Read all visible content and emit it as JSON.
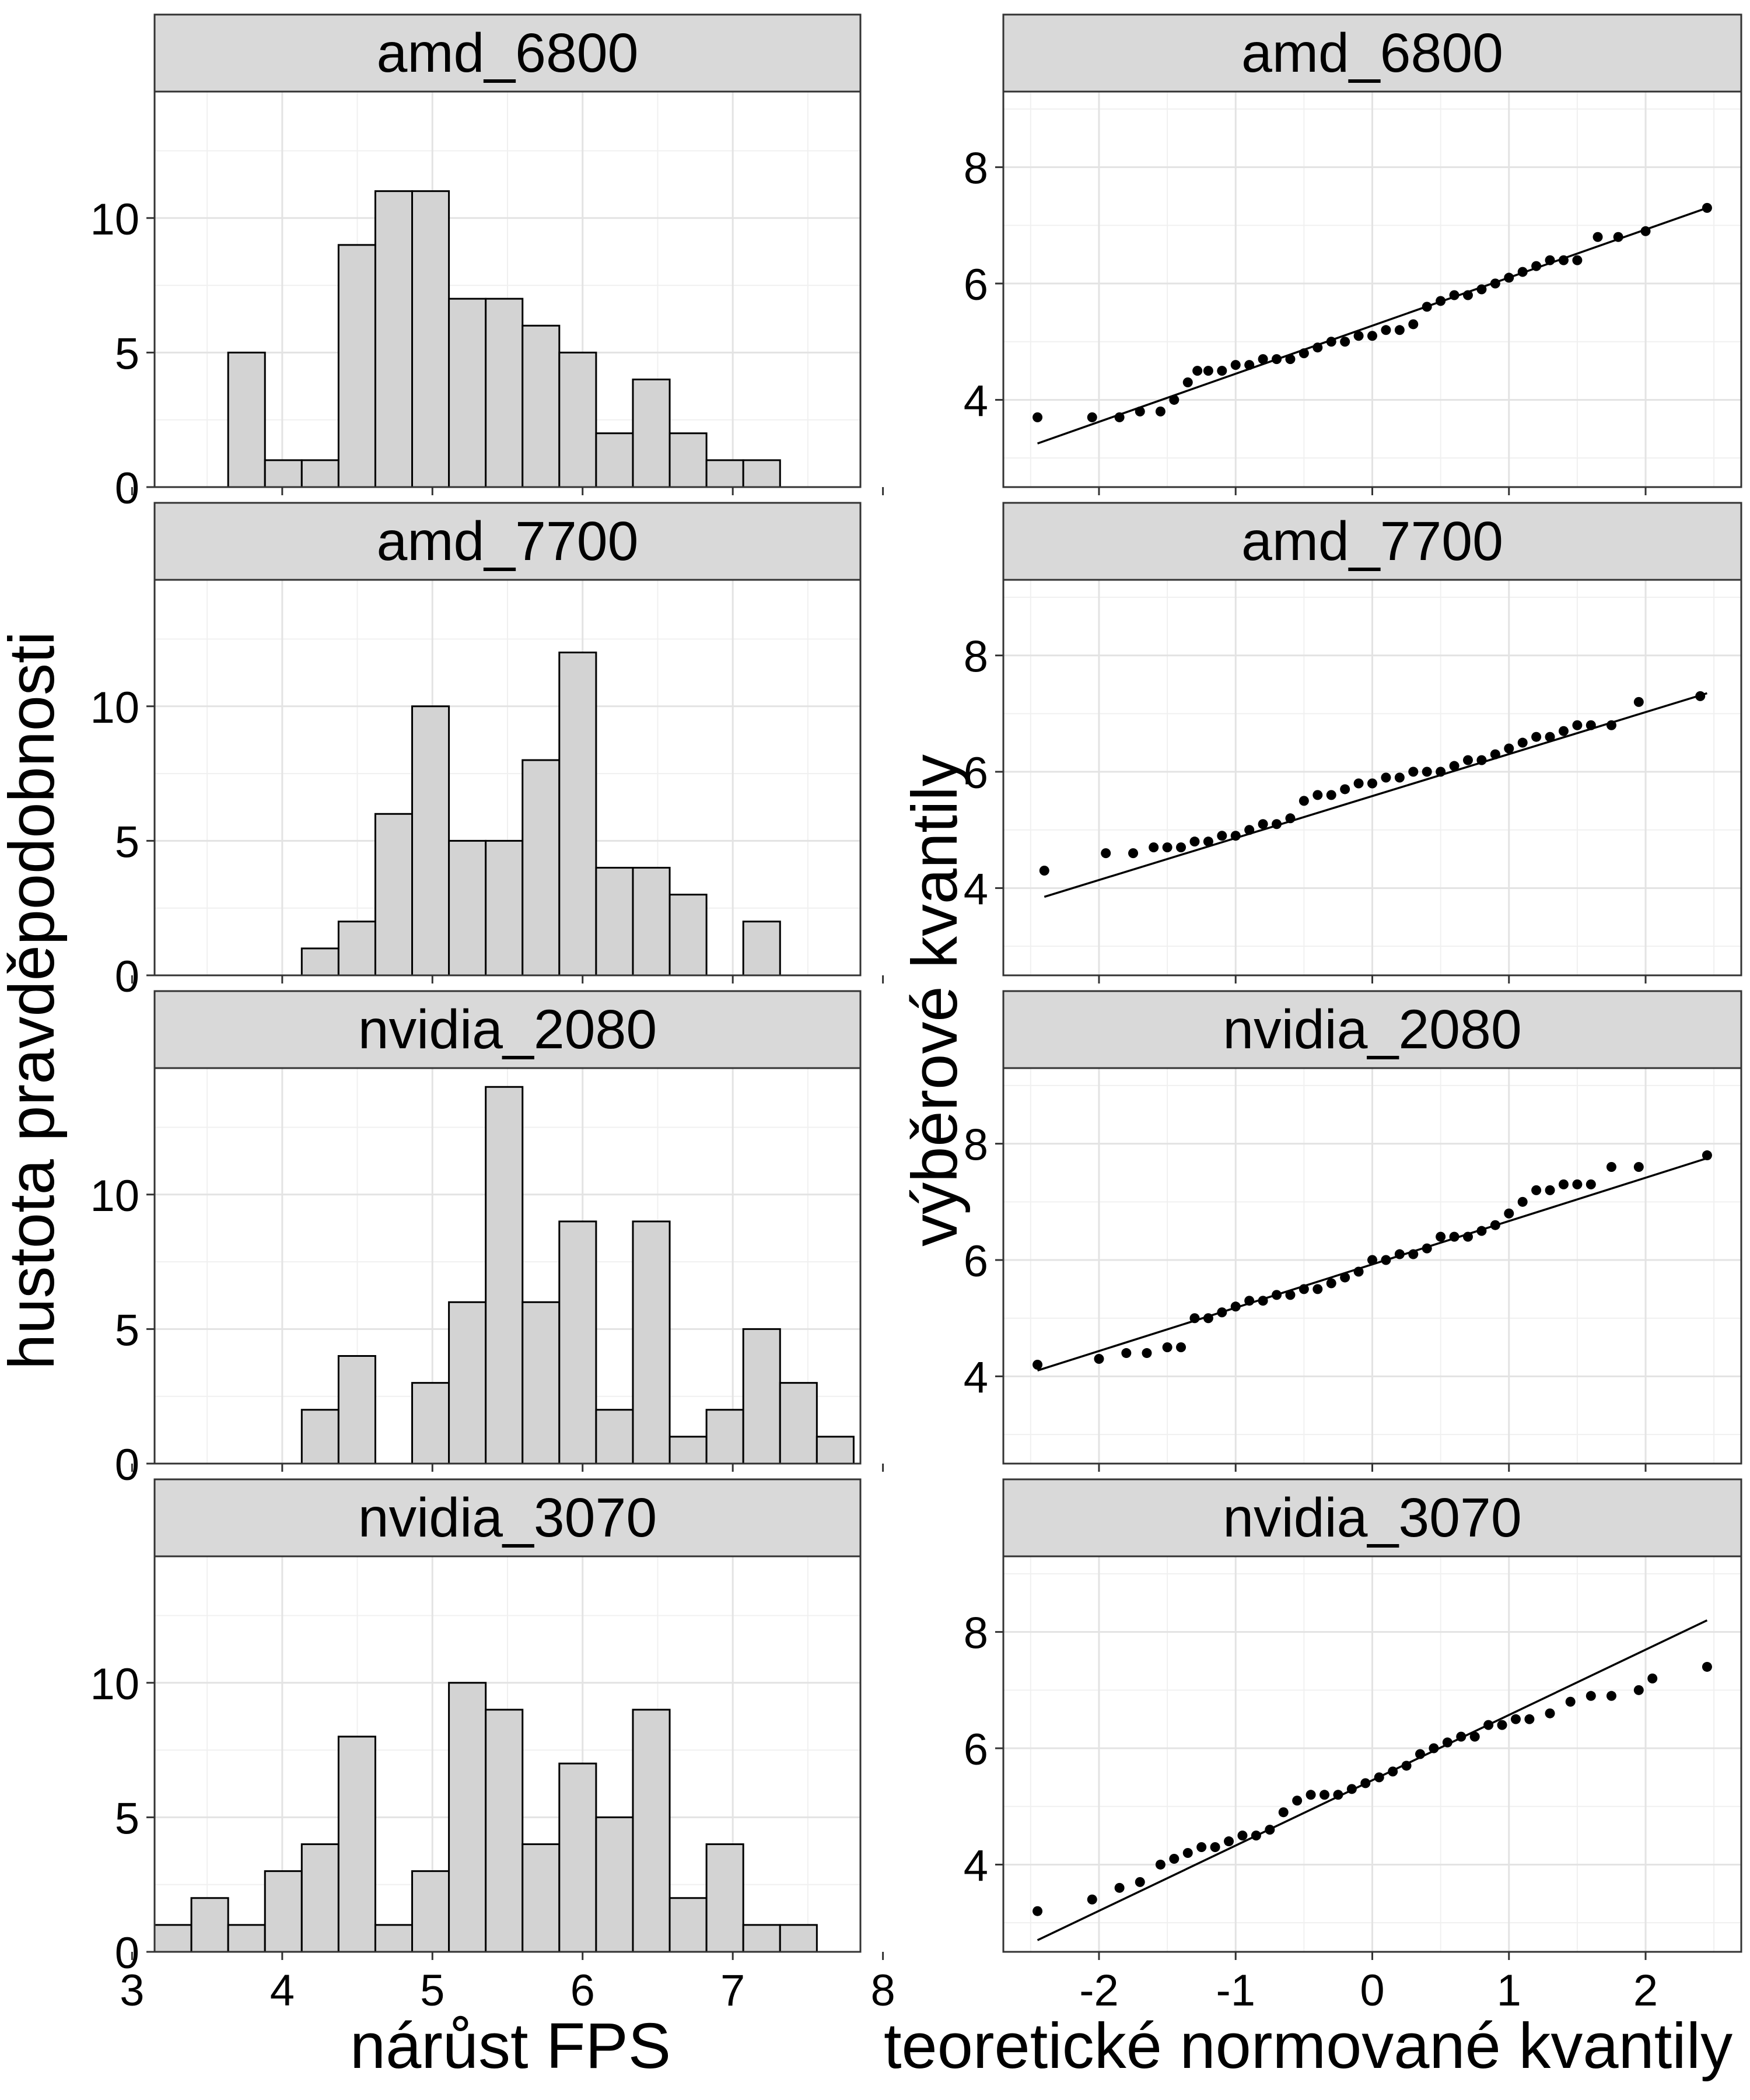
{
  "chart_data": [
    {
      "type": "bar",
      "layout": "facet_wrap",
      "facets": [
        "amd_6800",
        "amd_7700",
        "nvidia_2080",
        "nvidia_3070"
      ],
      "ylabel": "hustota pravděpodobnosti",
      "xlabel": "nárůst FPS",
      "xlim": [
        3.15,
        7.85
      ],
      "ylim": [
        0,
        14.7
      ],
      "xticks": [
        "3",
        "4",
        "5",
        "6",
        "7",
        "8"
      ],
      "xtick_values": [
        3,
        4,
        5,
        6,
        7,
        8
      ],
      "yticks": [
        "0",
        "5",
        "10"
      ],
      "ytick_values": [
        0,
        5,
        10
      ],
      "bin_start": 3.15,
      "bin_width": 0.245,
      "grid": true,
      "series": [
        {
          "facet": "amd_6800",
          "values": [
            0,
            0,
            5,
            1,
            1,
            9,
            11,
            11,
            7,
            7,
            6,
            5,
            2,
            4,
            2,
            1,
            1,
            0,
            0
          ]
        },
        {
          "facet": "amd_7700",
          "values": [
            0,
            0,
            0,
            0,
            1,
            2,
            6,
            10,
            5,
            5,
            8,
            12,
            4,
            4,
            3,
            0,
            2,
            0,
            0
          ]
        },
        {
          "facet": "nvidia_2080",
          "values": [
            0,
            0,
            0,
            0,
            2,
            4,
            0,
            3,
            6,
            14,
            6,
            9,
            2,
            9,
            1,
            2,
            5,
            3,
            1
          ]
        },
        {
          "facet": "nvidia_3070",
          "values": [
            1,
            2,
            1,
            3,
            4,
            8,
            1,
            3,
            10,
            9,
            4,
            7,
            5,
            9,
            2,
            4,
            1,
            1,
            0
          ]
        }
      ]
    },
    {
      "type": "scatter",
      "subtype": "qq",
      "layout": "facet_wrap",
      "facets": [
        "amd_6800",
        "amd_7700",
        "nvidia_2080",
        "nvidia_3070"
      ],
      "ylabel": "výběrové kvantily",
      "xlabel": "teoretické normované kvantily",
      "xlim": [
        -2.7,
        2.7
      ],
      "ylim": [
        2.5,
        9.3
      ],
      "xticks": [
        "-2",
        "-1",
        "0",
        "1",
        "2"
      ],
      "xtick_values": [
        -2,
        -1,
        0,
        1,
        2
      ],
      "yticks": [
        "4",
        "6",
        "8"
      ],
      "ytick_values": [
        4,
        6,
        8
      ],
      "grid": true,
      "series": [
        {
          "facet": "amd_6800",
          "line": {
            "x": [
              -2.45,
              2.45
            ],
            "y": [
              3.25,
              7.3
            ]
          },
          "x": [
            -2.45,
            -2.05,
            -1.85,
            -1.7,
            -1.55,
            -1.45,
            -1.35,
            -1.28,
            -1.2,
            -1.1,
            -1.0,
            -0.9,
            -0.8,
            -0.7,
            -0.6,
            -0.5,
            -0.4,
            -0.3,
            -0.2,
            -0.1,
            0.0,
            0.1,
            0.2,
            0.3,
            0.4,
            0.5,
            0.6,
            0.7,
            0.8,
            0.9,
            1.0,
            1.1,
            1.2,
            1.3,
            1.4,
            1.5,
            1.65,
            1.8,
            2.0,
            2.45
          ],
          "y": [
            3.7,
            3.7,
            3.7,
            3.8,
            3.8,
            4.0,
            4.3,
            4.5,
            4.5,
            4.5,
            4.6,
            4.6,
            4.7,
            4.7,
            4.7,
            4.8,
            4.9,
            5.0,
            5.0,
            5.1,
            5.1,
            5.2,
            5.2,
            5.3,
            5.6,
            5.7,
            5.8,
            5.8,
            5.9,
            6.0,
            6.1,
            6.2,
            6.3,
            6.4,
            6.4,
            6.4,
            6.8,
            6.8,
            6.9,
            7.3
          ]
        },
        {
          "facet": "amd_7700",
          "line": {
            "x": [
              -2.4,
              2.45
            ],
            "y": [
              3.85,
              7.35
            ]
          },
          "x": [
            -2.4,
            -1.95,
            -1.75,
            -1.6,
            -1.5,
            -1.4,
            -1.3,
            -1.2,
            -1.1,
            -1.0,
            -0.9,
            -0.8,
            -0.7,
            -0.6,
            -0.5,
            -0.4,
            -0.3,
            -0.2,
            -0.1,
            0.0,
            0.1,
            0.2,
            0.3,
            0.4,
            0.5,
            0.6,
            0.7,
            0.8,
            0.9,
            1.0,
            1.1,
            1.2,
            1.3,
            1.4,
            1.5,
            1.6,
            1.75,
            1.95,
            2.4
          ],
          "y": [
            4.3,
            4.6,
            4.6,
            4.7,
            4.7,
            4.7,
            4.8,
            4.8,
            4.9,
            4.9,
            5.0,
            5.1,
            5.1,
            5.2,
            5.5,
            5.6,
            5.6,
            5.7,
            5.8,
            5.8,
            5.9,
            5.9,
            6.0,
            6.0,
            6.0,
            6.1,
            6.2,
            6.2,
            6.3,
            6.4,
            6.5,
            6.6,
            6.6,
            6.7,
            6.8,
            6.8,
            6.8,
            7.2,
            7.3
          ]
        },
        {
          "facet": "nvidia_2080",
          "line": {
            "x": [
              -2.45,
              2.45
            ],
            "y": [
              4.1,
              7.75
            ]
          },
          "x": [
            -2.45,
            -2.0,
            -1.8,
            -1.65,
            -1.5,
            -1.4,
            -1.3,
            -1.2,
            -1.1,
            -1.0,
            -0.9,
            -0.8,
            -0.7,
            -0.6,
            -0.5,
            -0.4,
            -0.3,
            -0.2,
            -0.1,
            0.0,
            0.1,
            0.2,
            0.3,
            0.4,
            0.5,
            0.6,
            0.7,
            0.8,
            0.9,
            1.0,
            1.1,
            1.2,
            1.3,
            1.4,
            1.5,
            1.6,
            1.75,
            1.95,
            2.45
          ],
          "y": [
            4.2,
            4.3,
            4.4,
            4.4,
            4.5,
            4.5,
            5.0,
            5.0,
            5.1,
            5.2,
            5.3,
            5.3,
            5.4,
            5.4,
            5.5,
            5.5,
            5.6,
            5.7,
            5.8,
            6.0,
            6.0,
            6.1,
            6.1,
            6.2,
            6.4,
            6.4,
            6.4,
            6.5,
            6.6,
            6.8,
            7.0,
            7.2,
            7.2,
            7.3,
            7.3,
            7.3,
            7.6,
            7.6,
            7.8
          ]
        },
        {
          "facet": "nvidia_3070",
          "line": {
            "x": [
              -2.45,
              2.45
            ],
            "y": [
              2.7,
              8.2
            ]
          },
          "x": [
            -2.45,
            -2.05,
            -1.85,
            -1.7,
            -1.55,
            -1.45,
            -1.35,
            -1.25,
            -1.15,
            -1.05,
            -0.95,
            -0.85,
            -0.75,
            -0.65,
            -0.55,
            -0.45,
            -0.35,
            -0.25,
            -0.15,
            -0.05,
            0.05,
            0.15,
            0.25,
            0.35,
            0.45,
            0.55,
            0.65,
            0.75,
            0.85,
            0.95,
            1.05,
            1.15,
            1.3,
            1.45,
            1.6,
            1.75,
            1.95,
            2.05,
            2.45
          ],
          "y": [
            3.2,
            3.4,
            3.6,
            3.7,
            4.0,
            4.1,
            4.2,
            4.3,
            4.3,
            4.4,
            4.5,
            4.5,
            4.6,
            4.9,
            5.1,
            5.2,
            5.2,
            5.2,
            5.3,
            5.4,
            5.5,
            5.6,
            5.7,
            5.9,
            6.0,
            6.1,
            6.2,
            6.2,
            6.4,
            6.4,
            6.5,
            6.5,
            6.6,
            6.8,
            6.9,
            6.9,
            7.0,
            7.2,
            7.4
          ]
        }
      ]
    }
  ]
}
